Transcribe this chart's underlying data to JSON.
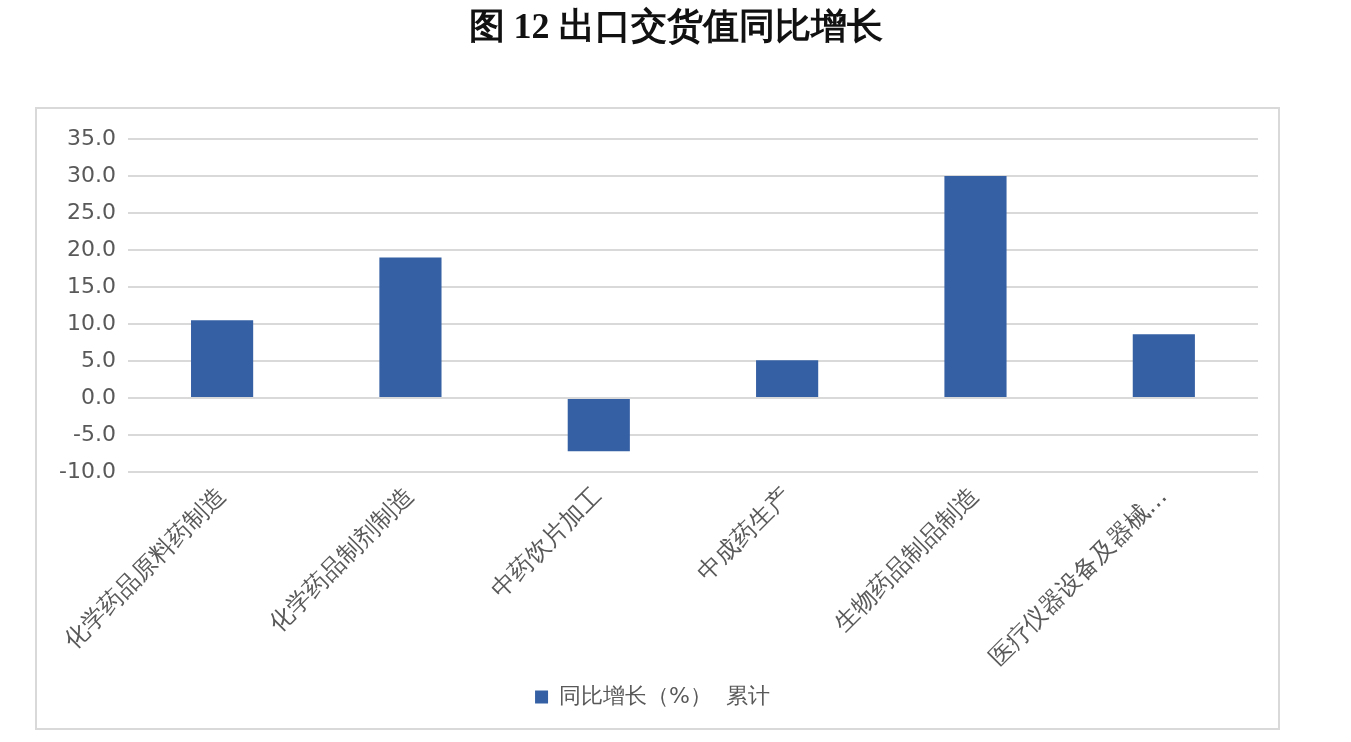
{
  "chart_data": {
    "type": "bar",
    "title": "图 12  出口交货值同比增长",
    "categories": [
      "化学药品原料药制造",
      "化学药品制剂制造",
      "中药饮片加工",
      "中成药生产",
      "生物药品制品制造",
      "医疗仪器设备及器械…"
    ],
    "series": [
      {
        "name": "同比增长（%）  累计",
        "color": "#3560a4",
        "values": [
          10.5,
          19.0,
          -7.2,
          5.1,
          30.0,
          8.6
        ]
      }
    ],
    "ylim": [
      -10,
      35
    ],
    "yticks": [
      {
        "value": -10,
        "label": "-10.0"
      },
      {
        "value": -5,
        "label": "-5.0"
      },
      {
        "value": 0,
        "label": "0.0"
      },
      {
        "value": 5,
        "label": "5.0"
      },
      {
        "value": 10,
        "label": "10.0"
      },
      {
        "value": 15,
        "label": "15.0"
      },
      {
        "value": 20,
        "label": "20.0"
      },
      {
        "value": 25,
        "label": "25.0"
      },
      {
        "value": 30,
        "label": "30.0"
      },
      {
        "value": 35,
        "label": "35.0"
      }
    ],
    "grid": "y",
    "legend": "bottom"
  }
}
